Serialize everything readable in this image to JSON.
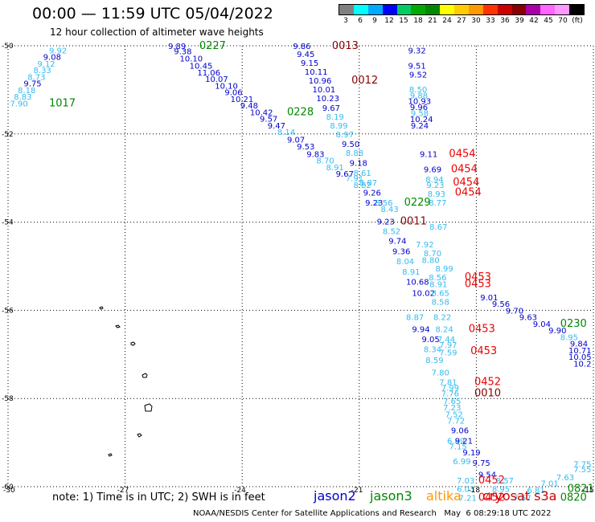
{
  "header": {
    "title": "00:00 — 11:59 UTC 05/04/2022",
    "subtitle": "12 hour collection of altimeter wave heights"
  },
  "color_scale": {
    "labels": [
      "3",
      "6",
      "9",
      "12",
      "15",
      "18",
      "21",
      "24",
      "27",
      "30",
      "33",
      "36",
      "39",
      "42",
      "45",
      "70",
      "(ft)"
    ],
    "colors": [
      "#808080",
      "#00ffff",
      "#00aaff",
      "#0000ff",
      "#00cc66",
      "#00aa00",
      "#008800",
      "#ffff00",
      "#ffcc00",
      "#ff9900",
      "#ff3300",
      "#cc0000",
      "#880000",
      "#aa00aa",
      "#ff66ff",
      "#ff99ff",
      "#000000"
    ]
  },
  "axes": {
    "lat_labels": [
      "-50",
      "-52",
      "-54",
      "-56",
      "-58",
      "-60"
    ],
    "lon_labels": [
      "-30",
      "-27",
      "-24",
      "-21",
      "-18",
      "-15"
    ]
  },
  "colors": {
    "j2": "#0000cc",
    "j3": "#008800",
    "al": "#ff9900",
    "cs": "#cc0000",
    "cyan": "#33bbee",
    "red": "#ee0000",
    "dkred": "#880000"
  },
  "observations": [
    {
      "t": "9.92",
      "c": "cyan",
      "lon": -28.95,
      "lat": -50.1
    },
    {
      "t": "9.08",
      "c": "j2",
      "lon": -29.1,
      "lat": -50.25
    },
    {
      "t": "9.12",
      "c": "cyan",
      "lon": -29.25,
      "lat": -50.4
    },
    {
      "t": "8.33",
      "c": "cyan",
      "lon": -29.35,
      "lat": -50.55
    },
    {
      "t": "8.73",
      "c": "cyan",
      "lon": -29.5,
      "lat": -50.7
    },
    {
      "t": "9.75",
      "c": "j2",
      "lon": -29.6,
      "lat": -50.85
    },
    {
      "t": "8.18",
      "c": "cyan",
      "lon": -29.75,
      "lat": -51.0
    },
    {
      "t": "8.83",
      "c": "cyan",
      "lon": -29.85,
      "lat": -51.15
    },
    {
      "t": "7.90",
      "c": "cyan",
      "lon": -29.95,
      "lat": -51.3
    },
    {
      "t": "1017",
      "c": "j3",
      "lon": -28.95,
      "lat": -51.3,
      "big": true
    },
    {
      "t": "9.89",
      "c": "j2",
      "lon": -25.9,
      "lat": -50.0
    },
    {
      "t": "0227",
      "c": "j3",
      "lon": -25.1,
      "lat": -50.0,
      "big": true
    },
    {
      "t": "9.38",
      "c": "j2",
      "lon": -25.75,
      "lat": -50.12
    },
    {
      "t": "10.10",
      "c": "j2",
      "lon": -25.6,
      "lat": -50.28
    },
    {
      "t": "10.45",
      "c": "j2",
      "lon": -25.35,
      "lat": -50.45
    },
    {
      "t": "11.06",
      "c": "j2",
      "lon": -25.15,
      "lat": -50.6
    },
    {
      "t": "10.07",
      "c": "j2",
      "lon": -24.95,
      "lat": -50.75
    },
    {
      "t": "10.10",
      "c": "j2",
      "lon": -24.7,
      "lat": -50.9
    },
    {
      "t": "9.06",
      "c": "j2",
      "lon": -24.45,
      "lat": -51.05
    },
    {
      "t": "10.21",
      "c": "j2",
      "lon": -24.3,
      "lat": -51.2
    },
    {
      "t": "9.48",
      "c": "j2",
      "lon": -24.05,
      "lat": -51.35
    },
    {
      "t": "10.42",
      "c": "j2",
      "lon": -23.8,
      "lat": -51.5
    },
    {
      "t": "0228",
      "c": "j3",
      "lon": -22.85,
      "lat": -51.5,
      "big": true
    },
    {
      "t": "9.57",
      "c": "j2",
      "lon": -23.55,
      "lat": -51.65
    },
    {
      "t": "9.47",
      "c": "j2",
      "lon": -23.35,
      "lat": -51.8
    },
    {
      "t": "8.14",
      "c": "cyan",
      "lon": -23.1,
      "lat": -51.95
    },
    {
      "t": "9.07",
      "c": "j2",
      "lon": -22.85,
      "lat": -52.12
    },
    {
      "t": "9.53",
      "c": "j2",
      "lon": -22.6,
      "lat": -52.28
    },
    {
      "t": "9.83",
      "c": "j2",
      "lon": -22.35,
      "lat": -52.45
    },
    {
      "t": "8.70",
      "c": "cyan",
      "lon": -22.1,
      "lat": -52.6
    },
    {
      "t": "8.91",
      "c": "cyan",
      "lon": -21.85,
      "lat": -52.75
    },
    {
      "t": "9.67",
      "c": "j2",
      "lon": -21.6,
      "lat": -52.9
    },
    {
      "t": "7.91",
      "c": "cyan",
      "lon": -21.35,
      "lat": -53.0
    },
    {
      "t": "8.82",
      "c": "cyan",
      "lon": -21.15,
      "lat": -53.15
    },
    {
      "t": "9.86",
      "c": "j2",
      "lon": -22.7,
      "lat": -50.0
    },
    {
      "t": "0013",
      "c": "dkred",
      "lon": -21.7,
      "lat": -50.0,
      "big": true
    },
    {
      "t": "9.45",
      "c": "j2",
      "lon": -22.6,
      "lat": -50.18
    },
    {
      "t": "9.15",
      "c": "j2",
      "lon": -22.5,
      "lat": -50.38
    },
    {
      "t": "10.11",
      "c": "j2",
      "lon": -22.4,
      "lat": -50.58
    },
    {
      "t": "10.96",
      "c": "j2",
      "lon": -22.3,
      "lat": -50.78
    },
    {
      "t": "0012",
      "c": "dkred",
      "lon": -21.2,
      "lat": -50.78,
      "big": true
    },
    {
      "t": "10.01",
      "c": "j2",
      "lon": -22.2,
      "lat": -50.98
    },
    {
      "t": "10.23",
      "c": "j2",
      "lon": -22.1,
      "lat": -51.18
    },
    {
      "t": "9.67",
      "c": "j2",
      "lon": -21.95,
      "lat": -51.4
    },
    {
      "t": "8.19",
      "c": "cyan",
      "lon": -21.85,
      "lat": -51.6
    },
    {
      "t": "8.99",
      "c": "cyan",
      "lon": -21.75,
      "lat": -51.8
    },
    {
      "t": "8.97",
      "c": "cyan",
      "lon": -21.6,
      "lat": -52.0
    },
    {
      "t": "9.50",
      "c": "j2",
      "lon": -21.45,
      "lat": -52.22
    },
    {
      "t": "8.88",
      "c": "cyan",
      "lon": -21.35,
      "lat": -52.42
    },
    {
      "t": "9.18",
      "c": "j2",
      "lon": -21.25,
      "lat": -52.65
    },
    {
      "t": "8.61",
      "c": "cyan",
      "lon": -21.15,
      "lat": -52.88
    },
    {
      "t": "8.87",
      "c": "cyan",
      "lon": -21.0,
      "lat": -53.1
    },
    {
      "t": "9.26",
      "c": "j2",
      "lon": -20.9,
      "lat": -53.32
    },
    {
      "t": "9.23",
      "c": "j2",
      "lon": -20.85,
      "lat": -53.55
    },
    {
      "t": "8.56",
      "c": "cyan",
      "lon": -20.6,
      "lat": -53.55
    },
    {
      "t": "8.43",
      "c": "cyan",
      "lon": -20.45,
      "lat": -53.7
    },
    {
      "t": "0229",
      "c": "j3",
      "lon": -19.85,
      "lat": -53.55,
      "big": true
    },
    {
      "t": "9.23",
      "c": "j2",
      "lon": -20.55,
      "lat": -53.98
    },
    {
      "t": "0011",
      "c": "dkred",
      "lon": -19.95,
      "lat": -53.98,
      "big": true
    },
    {
      "t": "8.52",
      "c": "cyan",
      "lon": -20.4,
      "lat": -54.2
    },
    {
      "t": "9.74",
      "c": "j2",
      "lon": -20.25,
      "lat": -54.42
    },
    {
      "t": "9.36",
      "c": "j2",
      "lon": -20.15,
      "lat": -54.65
    },
    {
      "t": "8.04",
      "c": "cyan",
      "lon": -20.05,
      "lat": -54.88
    },
    {
      "t": "8.91",
      "c": "cyan",
      "lon": -19.9,
      "lat": -55.12
    },
    {
      "t": "10.68",
      "c": "j2",
      "lon": -19.8,
      "lat": -55.35
    },
    {
      "t": "10.02",
      "c": "j2",
      "lon": -19.65,
      "lat": -55.6
    },
    {
      "t": "9.32",
      "c": "j2",
      "lon": -19.75,
      "lat": -50.1
    },
    {
      "t": "9.51",
      "c": "j2",
      "lon": -19.75,
      "lat": -50.45
    },
    {
      "t": "9.52",
      "c": "j2",
      "lon": -19.72,
      "lat": -50.65
    },
    {
      "t": "8.50",
      "c": "cyan",
      "lon": -19.72,
      "lat": -50.98
    },
    {
      "t": "9.88",
      "c": "cyan",
      "lon": -19.7,
      "lat": -51.12
    },
    {
      "t": "10.93",
      "c": "j2",
      "lon": -19.75,
      "lat": -51.25
    },
    {
      "t": "9.96",
      "c": "j2",
      "lon": -19.7,
      "lat": -51.38
    },
    {
      "t": "9.58",
      "c": "cyan",
      "lon": -19.68,
      "lat": -51.52
    },
    {
      "t": "10.24",
      "c": "j2",
      "lon": -19.7,
      "lat": -51.66
    },
    {
      "t": "9.24",
      "c": "j2",
      "lon": -19.68,
      "lat": -51.8
    },
    {
      "t": "9.11",
      "c": "j2",
      "lon": -19.45,
      "lat": -52.45
    },
    {
      "t": "0454",
      "c": "red",
      "lon": -18.7,
      "lat": -52.45,
      "big": true
    },
    {
      "t": "9.69",
      "c": "j2",
      "lon": -19.35,
      "lat": -52.8
    },
    {
      "t": "0454",
      "c": "red",
      "lon": -18.65,
      "lat": -52.8,
      "big": true
    },
    {
      "t": "8.94",
      "c": "cyan",
      "lon": -19.3,
      "lat": -53.02
    },
    {
      "t": "9.23",
      "c": "cyan",
      "lon": -19.28,
      "lat": -53.15
    },
    {
      "t": "0454",
      "c": "red",
      "lon": -18.6,
      "lat": -53.1,
      "big": true
    },
    {
      "t": "8.93",
      "c": "cyan",
      "lon": -19.25,
      "lat": -53.35
    },
    {
      "t": "0454",
      "c": "red",
      "lon": -18.55,
      "lat": -53.32,
      "big": true
    },
    {
      "t": "8.77",
      "c": "cyan",
      "lon": -19.22,
      "lat": -53.55
    },
    {
      "t": "8.67",
      "c": "cyan",
      "lon": -19.2,
      "lat": -54.1
    },
    {
      "t": "7.92",
      "c": "cyan",
      "lon": -19.55,
      "lat": -54.5
    },
    {
      "t": "8.70",
      "c": "cyan",
      "lon": -19.35,
      "lat": -54.7
    },
    {
      "t": "8.80",
      "c": "cyan",
      "lon": -19.4,
      "lat": -54.85
    },
    {
      "t": "8.99",
      "c": "cyan",
      "lon": -19.05,
      "lat": -55.05
    },
    {
      "t": "8.56",
      "c": "cyan",
      "lon": -19.22,
      "lat": -55.25
    },
    {
      "t": "8.91",
      "c": "cyan",
      "lon": -19.2,
      "lat": -55.4
    },
    {
      "t": "0453",
      "c": "red",
      "lon": -18.3,
      "lat": -55.25,
      "big": true
    },
    {
      "t": "0453",
      "c": "red",
      "lon": -18.3,
      "lat": -55.4,
      "big": true
    },
    {
      "t": "8.65",
      "c": "cyan",
      "lon": -19.15,
      "lat": -55.6
    },
    {
      "t": "8.58",
      "c": "cyan",
      "lon": -19.15,
      "lat": -55.8
    },
    {
      "t": "9.01",
      "c": "j2",
      "lon": -17.9,
      "lat": -55.7
    },
    {
      "t": "9.56",
      "c": "j2",
      "lon": -17.6,
      "lat": -55.85
    },
    {
      "t": "9.70",
      "c": "j2",
      "lon": -17.25,
      "lat": -56.0
    },
    {
      "t": "9.63",
      "c": "j2",
      "lon": -16.9,
      "lat": -56.15
    },
    {
      "t": "9.04",
      "c": "j2",
      "lon": -16.55,
      "lat": -56.3
    },
    {
      "t": "0230",
      "c": "j3",
      "lon": -15.85,
      "lat": -56.3,
      "big": true
    },
    {
      "t": "9.90",
      "c": "j2",
      "lon": -16.15,
      "lat": -56.45
    },
    {
      "t": "8.95",
      "c": "cyan",
      "lon": -15.85,
      "lat": -56.6
    },
    {
      "t": "9.84",
      "c": "j2",
      "lon": -15.6,
      "lat": -56.75
    },
    {
      "t": "10.71",
      "c": "j2",
      "lon": -15.35,
      "lat": -56.9
    },
    {
      "t": "10.05",
      "c": "j2",
      "lon": -15.1,
      "lat": -57.05
    },
    {
      "t": "10.2",
      "c": "j2",
      "lon": -14.9,
      "lat": -57.2
    },
    {
      "t": "8.87",
      "c": "cyan",
      "lon": -19.8,
      "lat": -56.15
    },
    {
      "t": "8.22",
      "c": "cyan",
      "lon": -19.1,
      "lat": -56.15
    },
    {
      "t": "9.94",
      "c": "j2",
      "lon": -19.65,
      "lat": -56.42
    },
    {
      "t": "8.24",
      "c": "cyan",
      "lon": -19.05,
      "lat": -56.42
    },
    {
      "t": "0453",
      "c": "red",
      "lon": -18.2,
      "lat": -56.42,
      "big": true
    },
    {
      "t": "9.05",
      "c": "j2",
      "lon": -19.4,
      "lat": -56.65
    },
    {
      "t": "7.44",
      "c": "cyan",
      "lon": -19.0,
      "lat": -56.65
    },
    {
      "t": "7.97",
      "c": "cyan",
      "lon": -18.95,
      "lat": -56.78
    },
    {
      "t": "8.34",
      "c": "cyan",
      "lon": -19.35,
      "lat": -56.88
    },
    {
      "t": "7.59",
      "c": "cyan",
      "lon": -18.95,
      "lat": -56.95
    },
    {
      "t": "0453",
      "c": "red",
      "lon": -18.15,
      "lat": -56.92,
      "big": true
    },
    {
      "t": "8.59",
      "c": "cyan",
      "lon": -19.3,
      "lat": -57.12
    },
    {
      "t": "7.80",
      "c": "cyan",
      "lon": -19.15,
      "lat": -57.4
    },
    {
      "t": "7.81",
      "c": "cyan",
      "lon": -18.95,
      "lat": -57.62
    },
    {
      "t": "0452",
      "c": "red",
      "lon": -18.05,
      "lat": -57.62,
      "big": true
    },
    {
      "t": "7.99",
      "c": "cyan",
      "lon": -18.9,
      "lat": -57.75
    },
    {
      "t": "7.76",
      "c": "cyan",
      "lon": -18.9,
      "lat": -57.88
    },
    {
      "t": "0010",
      "c": "dkred",
      "lon": -18.05,
      "lat": -57.88,
      "big": true
    },
    {
      "t": "7.65",
      "c": "cyan",
      "lon": -18.85,
      "lat": -58.05
    },
    {
      "t": "7.23",
      "c": "cyan",
      "lon": -18.85,
      "lat": -58.2
    },
    {
      "t": "7.52",
      "c": "cyan",
      "lon": -18.8,
      "lat": -58.35
    },
    {
      "t": "7.72",
      "c": "cyan",
      "lon": -18.75,
      "lat": -58.5
    },
    {
      "t": "9.06",
      "c": "j2",
      "lon": -18.65,
      "lat": -58.72
    },
    {
      "t": "6.89",
      "c": "cyan",
      "lon": -18.75,
      "lat": -58.95
    },
    {
      "t": "9.21",
      "c": "j2",
      "lon": -18.55,
      "lat": -58.95
    },
    {
      "t": "7.15",
      "c": "cyan",
      "lon": -18.7,
      "lat": -59.08
    },
    {
      "t": "9.19",
      "c": "j2",
      "lon": -18.35,
      "lat": -59.22
    },
    {
      "t": "6.99",
      "c": "cyan",
      "lon": -18.6,
      "lat": -59.42
    },
    {
      "t": "9.75",
      "c": "j2",
      "lon": -18.1,
      "lat": -59.45
    },
    {
      "t": "9.54",
      "c": "j2",
      "lon": -17.95,
      "lat": -59.72
    },
    {
      "t": "7.03",
      "c": "cyan",
      "lon": -18.5,
      "lat": -59.85
    },
    {
      "t": "0452",
      "c": "red",
      "lon": -17.95,
      "lat": -59.85,
      "big": true
    },
    {
      "t": "8.57",
      "c": "cyan",
      "lon": -17.5,
      "lat": -59.85
    },
    {
      "t": "6.03",
      "c": "cyan",
      "lon": -18.5,
      "lat": -60.05
    },
    {
      "t": "8.95",
      "c": "cyan",
      "lon": -17.6,
      "lat": -60.05
    },
    {
      "t": "7.21",
      "c": "cyan",
      "lon": -18.45,
      "lat": -60.25
    },
    {
      "t": "0452",
      "c": "red",
      "lon": -17.95,
      "lat": -60.25,
      "big": true
    },
    {
      "t": "7.57",
      "c": "cyan",
      "lon": -17.05,
      "lat": -60.25
    },
    {
      "t": "6.81",
      "c": "cyan",
      "lon": -16.7,
      "lat": -60.07
    },
    {
      "t": "7.01",
      "c": "cyan",
      "lon": -16.35,
      "lat": -59.92
    },
    {
      "t": "7.63",
      "c": "cyan",
      "lon": -15.95,
      "lat": -59.78
    },
    {
      "t": "7.55",
      "c": "cyan",
      "lon": -15.35,
      "lat": -59.6
    },
    {
      "t": "7.75",
      "c": "cyan",
      "lon": -15.05,
      "lat": -59.48
    },
    {
      "t": "0821",
      "c": "j3",
      "lon": -15.45,
      "lat": -60.05,
      "big": true
    },
    {
      "t": "0820",
      "c": "j3",
      "lon": -15.85,
      "lat": -60.25,
      "big": true
    }
  ],
  "legend": {
    "note": "note:  1) Time is in UTC;  2) SWH is in feet",
    "j2": "jason2",
    "j3": "jason3",
    "altika": "altika",
    "cryosat": "cryosat s3a"
  },
  "credit": "NOAA/NESDIS Center for Satellite Applications and Research   May  6 08:29:18 UTC 2022"
}
